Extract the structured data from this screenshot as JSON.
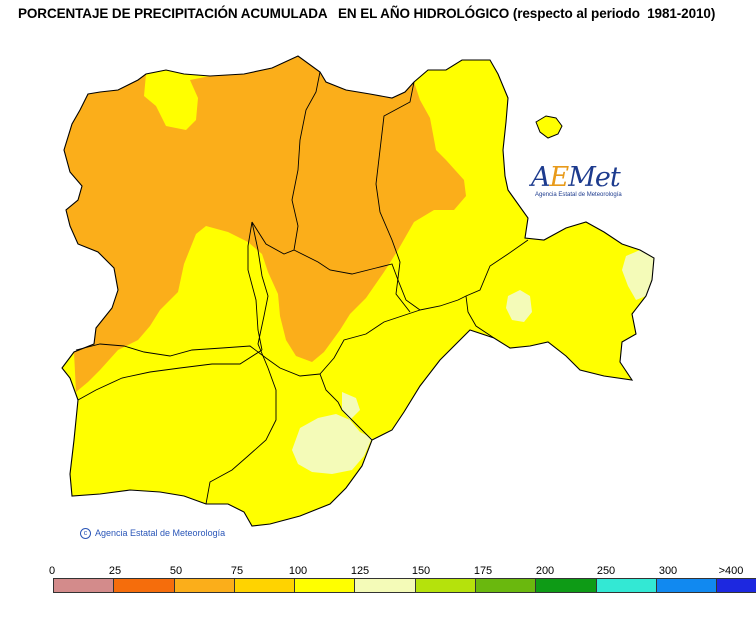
{
  "title": "PORCENTAJE DE PRECIPITACIÓN ACUMULADA   EN EL AÑO HIDROLÓGICO (respecto al periodo  1981-2010)",
  "logo": {
    "brand_a": "A",
    "brand_e": "E",
    "brand_rest": "Met",
    "subtitle": "Agencia Estatal de Meteorología"
  },
  "copyright": {
    "symbol": "c",
    "text": "Agencia Estatal de Meteorología"
  },
  "legend": {
    "ticks": [
      "0",
      "25",
      "50",
      "75",
      "100",
      "125",
      "150",
      "175",
      "200",
      "250",
      "300",
      ">400"
    ],
    "colors": [
      "#d38b8b",
      "#f56d0c",
      "#fbae1a",
      "#ffd300",
      "#ffff00",
      "#f4fbb8",
      "#b5e20c",
      "#6ab80e",
      "#0e9b16",
      "#33e8d4",
      "#1189f0",
      "#1d28e0"
    ]
  },
  "map_colors": {
    "lt75": "#fbae1a",
    "75_100": "#ffff00",
    "100_125": "#f4fbb8",
    "border": "#000000"
  }
}
